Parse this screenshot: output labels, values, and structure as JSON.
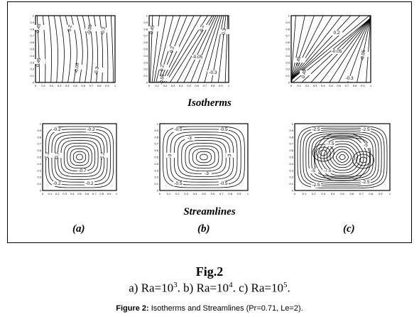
{
  "panels": {
    "isotherms_labels": {
      "a": [
        "0.45",
        "0.2",
        "-0.05",
        "-0.3",
        "0.45",
        "-0.05",
        "-0.3"
      ],
      "b": [
        "0.45",
        "0.2",
        "-0.3",
        "0.2",
        "-0.05",
        "0.2",
        "-0.05",
        "-0.3"
      ],
      "c": [
        "0.2",
        "-0.05",
        "-0.05",
        "-0.3",
        "0.45",
        "0.45"
      ]
    },
    "streamlines_labels": {
      "a": [
        "-0.2",
        "-0.2",
        "-0.7",
        "-1.2",
        "-1.2",
        "-0.7",
        "-0.2",
        "-0.2"
      ],
      "b": [
        "-0.5",
        "-0.5",
        "-3",
        "-3",
        "-3",
        "-3",
        "-0.5",
        "-0.5"
      ],
      "c": [
        "-2.5",
        "-2.5",
        "-5",
        "-7.5",
        "-7.5",
        "-5",
        "-2.5",
        "-2.5"
      ]
    },
    "y_ticks": [
      "0",
      "0.1",
      "0.2",
      "0.3",
      "0.4",
      "0.5",
      "0.6",
      "0.7",
      "0.8",
      "0.9",
      "1"
    ],
    "x_ticks": [
      "0",
      "0.1",
      "0.2",
      "0.3",
      "0.4",
      "0.5",
      "0.6",
      "0.7",
      "0.8",
      "0.9",
      "1"
    ]
  },
  "row_labels": {
    "isotherms": "Isotherms",
    "streamlines": "Streamlines"
  },
  "case_labels": {
    "a": "(a)",
    "b": "(b)",
    "c": "(c)"
  },
  "figure": {
    "title": "Fig.2",
    "sub_a_pre": "a) Ra=10",
    "sub_a_exp": "3",
    "sub_b_pre": ". b) Ra=10",
    "sub_b_exp": "4",
    "sub_c_pre": ". c) Ra=10",
    "sub_c_exp": "5",
    "sub_end": ".",
    "caption_bold": "Figure 2:",
    "caption_text": " Isotherms and Streamlines (Pr=0.71, Le=2)."
  }
}
